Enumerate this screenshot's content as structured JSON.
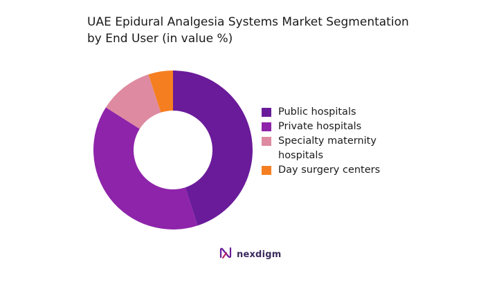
{
  "chart_data": {
    "type": "pie",
    "title_lines": [
      "UAE Epidural Analgesia Systems Market Segmentation",
      "by End User (in value %)"
    ],
    "categories": [
      "Public hospitals",
      "Private hospitals",
      "Specialty maternity hospitals",
      "Day surgery centers"
    ],
    "values": [
      45,
      39,
      11,
      5
    ],
    "colors": [
      "#6a1b9a",
      "#8e24aa",
      "#de8aa0",
      "#f57f20"
    ],
    "legend_lines": [
      [
        "Public hospitals"
      ],
      [
        "Private hospitals"
      ],
      [
        "Specialty maternity",
        "hospitals"
      ],
      [
        "Day surgery centers"
      ]
    ],
    "legend_position": "right",
    "donut": true
  },
  "brand": {
    "name": "nexdigm",
    "logo_icon": "nexdigm-logo-icon"
  }
}
